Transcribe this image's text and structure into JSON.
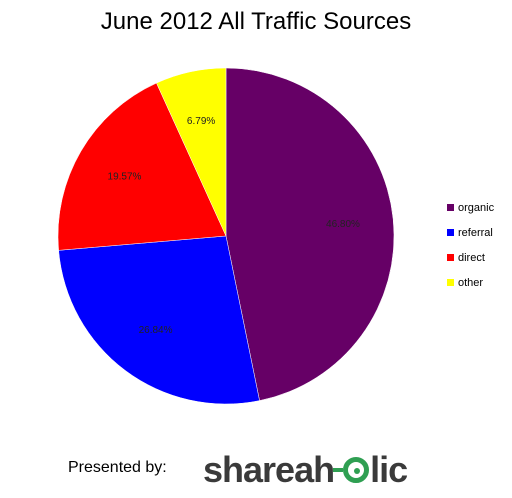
{
  "chart_data": {
    "type": "pie",
    "title": "June 2012 All Traffic Sources",
    "slices": [
      {
        "name": "organic",
        "value": 46.8,
        "label": "46.80%",
        "color": "#660066"
      },
      {
        "name": "referral",
        "value": 26.84,
        "label": "26.84%",
        "color": "#0000ff"
      },
      {
        "name": "direct",
        "value": 19.57,
        "label": "19.57%",
        "color": "#ff0000"
      },
      {
        "name": "other",
        "value": 6.79,
        "label": "6.79%",
        "color": "#ffff00"
      }
    ],
    "legend_position": "right"
  },
  "footer": {
    "presented_by": "Presented by:",
    "logo_text": {
      "part1": "shareah",
      "part2": "lic"
    }
  }
}
